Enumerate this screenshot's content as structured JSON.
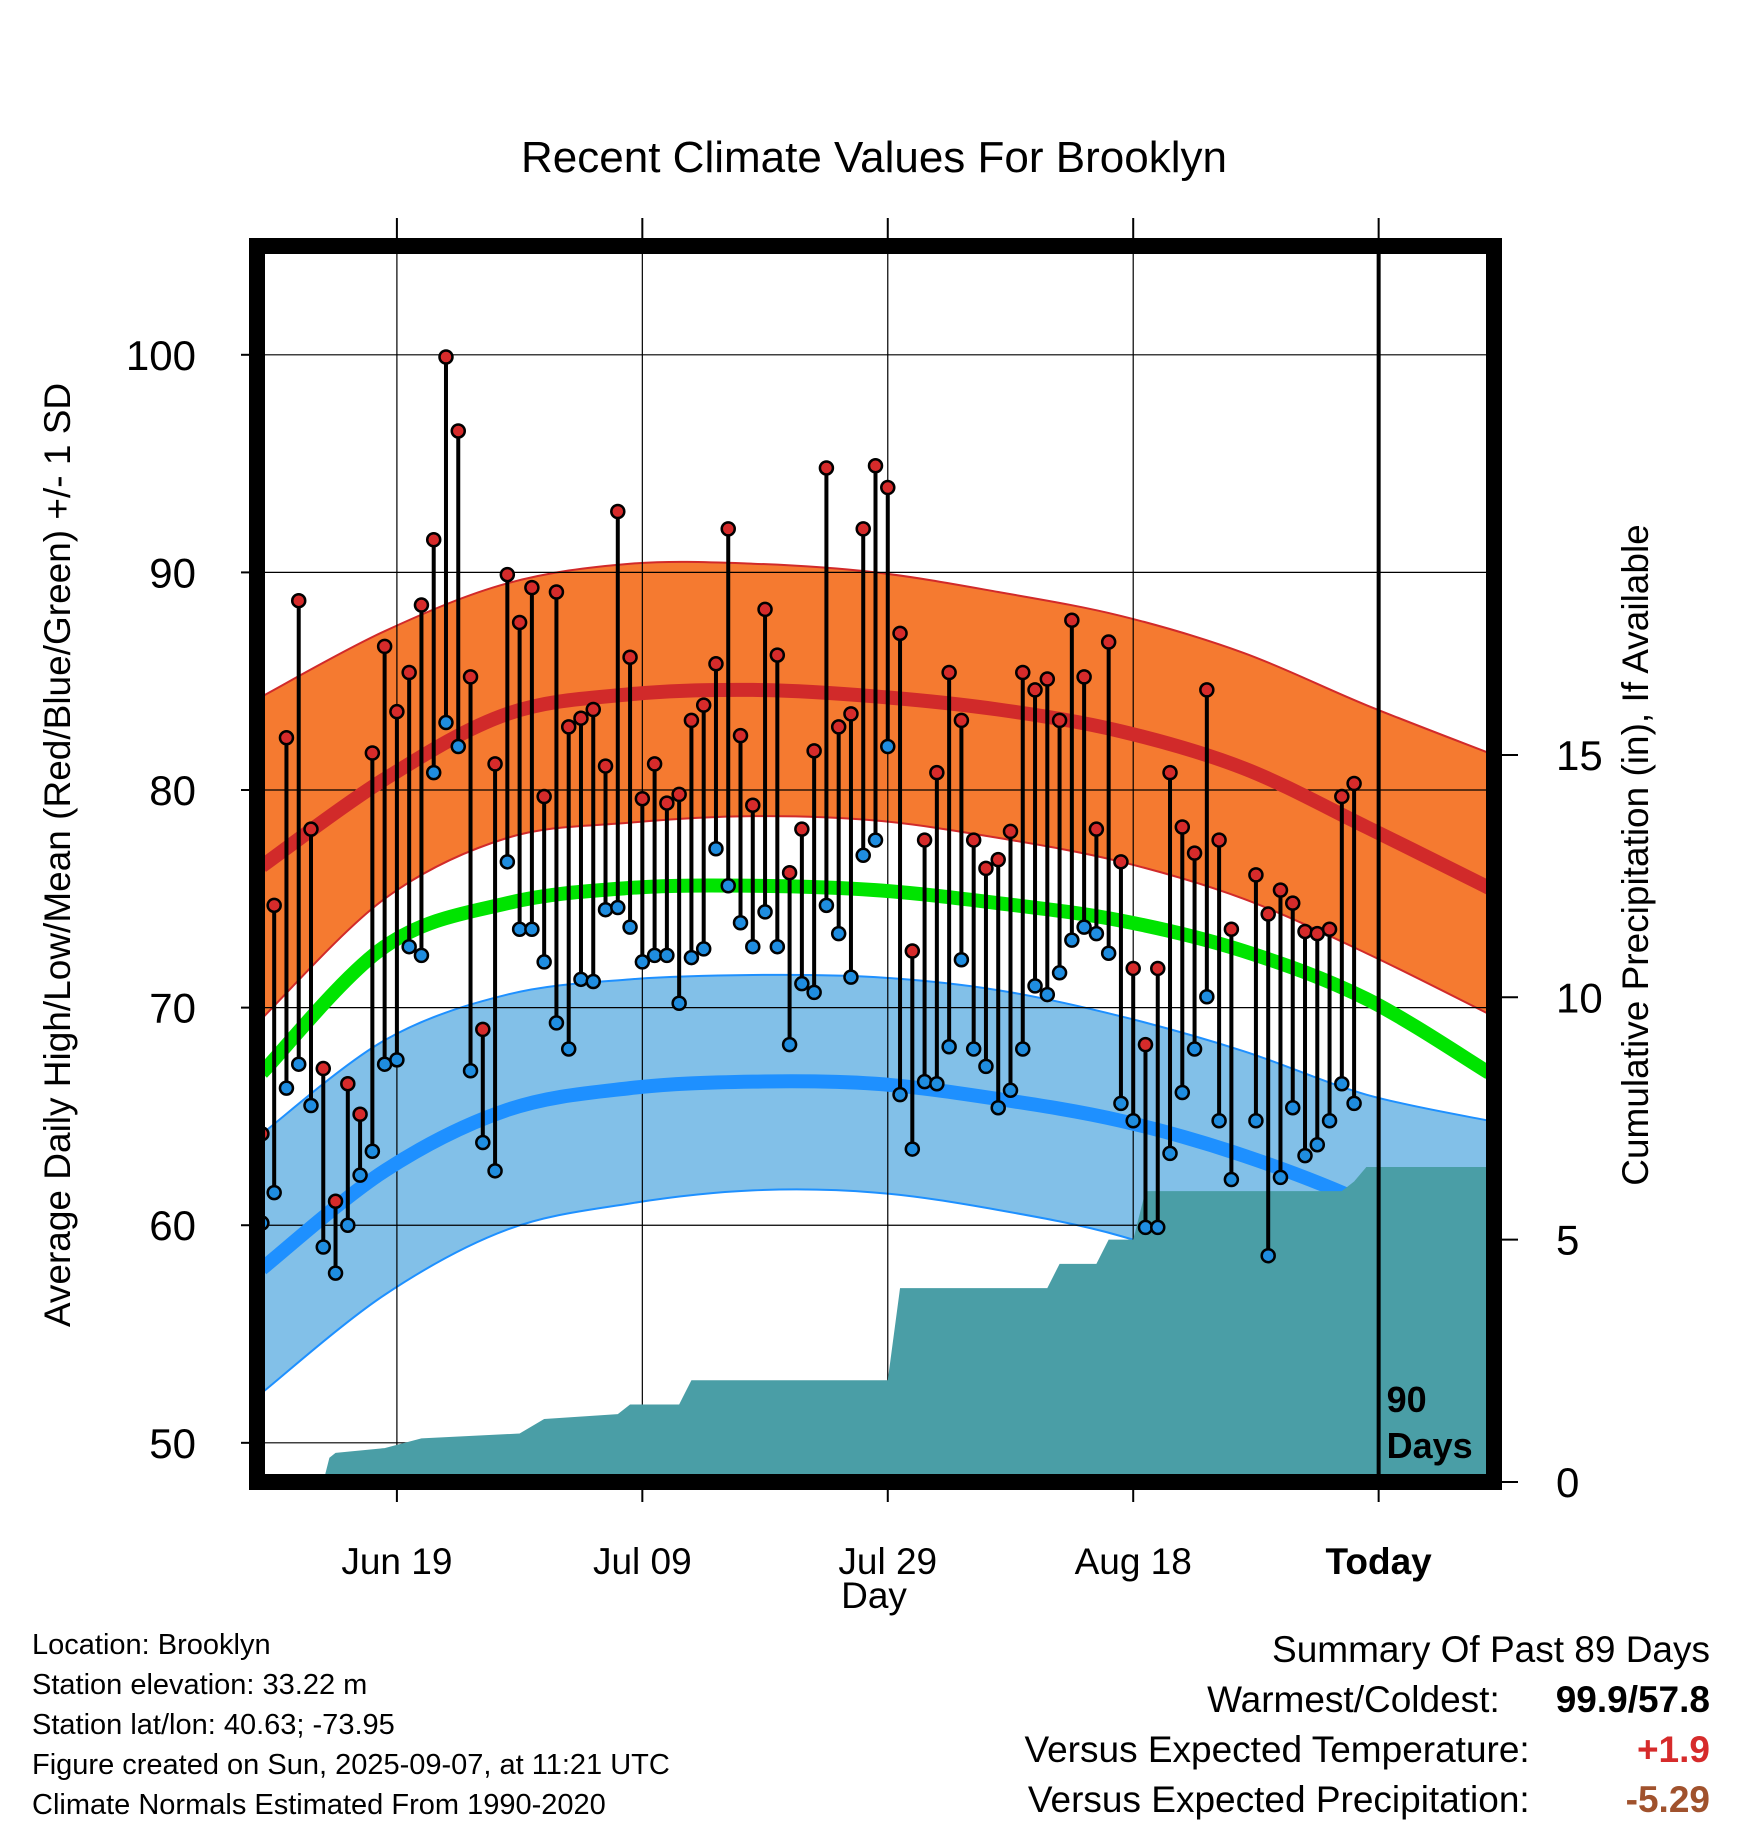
{
  "chart_data": {
    "type": "line",
    "title": "Recent Climate Values For Brooklyn",
    "xlabel": "Day",
    "ylabel": "Average Daily High/Low/Mean (Red/Blue/Green) +/- 1 SD",
    "y2label": "Cumulative Precipitation (in), If Available",
    "ylim": [
      48.2,
      105
    ],
    "y2lim": [
      0,
      25.5
    ],
    "xlim": [
      -0.4,
      100.4
    ],
    "x_tick_labels": [
      {
        "x": 11,
        "label": "Jun 19"
      },
      {
        "x": 31,
        "label": "Jul 09"
      },
      {
        "x": 51,
        "label": "Jul 29"
      },
      {
        "x": 71,
        "label": "Aug 18"
      },
      {
        "x": 91,
        "label": "Today"
      }
    ],
    "y_ticks": [
      50,
      60,
      70,
      80,
      90,
      100
    ],
    "y2_ticks": [
      0,
      5,
      10,
      15
    ],
    "grid": true,
    "today_x": 91,
    "today_label": [
      "90",
      "Days"
    ],
    "normals": {
      "high_mean": [
        [
          0,
          76.5
        ],
        [
          10,
          80.5
        ],
        [
          20,
          83.5
        ],
        [
          30,
          84.4
        ],
        [
          40,
          84.6
        ],
        [
          50,
          84.3
        ],
        [
          60,
          83.7
        ],
        [
          70,
          82.7
        ],
        [
          80,
          81.0
        ],
        [
          90,
          78.3
        ],
        [
          100,
          75.5
        ]
      ],
      "high_upper": [
        [
          0,
          84.3
        ],
        [
          10,
          87.3
        ],
        [
          20,
          89.5
        ],
        [
          30,
          90.4
        ],
        [
          40,
          90.4
        ],
        [
          50,
          90.0
        ],
        [
          60,
          89.1
        ],
        [
          70,
          88.0
        ],
        [
          80,
          86.3
        ],
        [
          90,
          83.9
        ],
        [
          100,
          81.7
        ]
      ],
      "high_lower": [
        [
          0,
          69.5
        ],
        [
          10,
          75.0
        ],
        [
          20,
          77.8
        ],
        [
          30,
          78.5
        ],
        [
          40,
          78.8
        ],
        [
          50,
          78.6
        ],
        [
          60,
          77.8
        ],
        [
          70,
          76.7
        ],
        [
          80,
          75.0
        ],
        [
          90,
          72.5
        ],
        [
          100,
          69.7
        ]
      ],
      "mean": [
        [
          0,
          67.0
        ],
        [
          10,
          72.8
        ],
        [
          20,
          74.8
        ],
        [
          30,
          75.5
        ],
        [
          40,
          75.6
        ],
        [
          50,
          75.4
        ],
        [
          60,
          74.8
        ],
        [
          70,
          74.0
        ],
        [
          80,
          72.6
        ],
        [
          90,
          70.4
        ],
        [
          100,
          67.0
        ]
      ],
      "low_mean": [
        [
          0,
          58.0
        ],
        [
          10,
          62.5
        ],
        [
          20,
          65.3
        ],
        [
          30,
          66.3
        ],
        [
          40,
          66.6
        ],
        [
          50,
          66.5
        ],
        [
          60,
          65.8
        ],
        [
          70,
          64.8
        ],
        [
          80,
          63.2
        ],
        [
          90,
          61.0
        ],
        [
          100,
          58.0
        ]
      ],
      "low_upper": [
        [
          0,
          64.2
        ],
        [
          10,
          68.5
        ],
        [
          20,
          70.6
        ],
        [
          30,
          71.3
        ],
        [
          40,
          71.5
        ],
        [
          50,
          71.4
        ],
        [
          60,
          70.8
        ],
        [
          70,
          69.6
        ],
        [
          80,
          68.0
        ],
        [
          90,
          66.0
        ],
        [
          100,
          64.8
        ]
      ],
      "low_lower": [
        [
          0,
          52.3
        ],
        [
          10,
          56.8
        ],
        [
          20,
          59.8
        ],
        [
          30,
          61.0
        ],
        [
          40,
          61.6
        ],
        [
          50,
          61.5
        ],
        [
          60,
          60.7
        ],
        [
          70,
          59.5
        ],
        [
          80,
          57.5
        ],
        [
          90,
          54.5
        ],
        [
          100,
          50.5
        ]
      ]
    },
    "days": [
      {
        "x": 0,
        "high": 64.2,
        "low": 60.1
      },
      {
        "x": 1,
        "high": 74.7,
        "low": 61.5
      },
      {
        "x": 2,
        "high": 82.4,
        "low": 66.3
      },
      {
        "x": 3,
        "high": 88.7,
        "low": 67.4
      },
      {
        "x": 4,
        "high": 78.2,
        "low": 65.5
      },
      {
        "x": 5,
        "high": 67.2,
        "low": 59.0
      },
      {
        "x": 6,
        "high": 61.1,
        "low": 57.8
      },
      {
        "x": 7,
        "high": 66.5,
        "low": 60.0
      },
      {
        "x": 8,
        "high": 65.1,
        "low": 62.3
      },
      {
        "x": 9,
        "high": 81.7,
        "low": 63.4
      },
      {
        "x": 10,
        "high": 86.6,
        "low": 67.4
      },
      {
        "x": 11,
        "high": 83.6,
        "low": 67.6
      },
      {
        "x": 12,
        "high": 85.4,
        "low": 72.8
      },
      {
        "x": 13,
        "high": 88.5,
        "low": 72.4
      },
      {
        "x": 14,
        "high": 91.5,
        "low": 80.8
      },
      {
        "x": 15,
        "high": 99.9,
        "low": 83.1
      },
      {
        "x": 16,
        "high": 96.5,
        "low": 82.0
      },
      {
        "x": 17,
        "high": 85.2,
        "low": 67.1
      },
      {
        "x": 18,
        "high": 69.0,
        "low": 63.8
      },
      {
        "x": 19,
        "high": 81.2,
        "low": 62.5
      },
      {
        "x": 20,
        "high": 89.9,
        "low": 76.7
      },
      {
        "x": 21,
        "high": 87.7,
        "low": 73.6
      },
      {
        "x": 22,
        "high": 89.3,
        "low": 73.6
      },
      {
        "x": 23,
        "high": 79.7,
        "low": 72.1
      },
      {
        "x": 24,
        "high": 89.1,
        "low": 69.3
      },
      {
        "x": 25,
        "high": 82.9,
        "low": 68.1
      },
      {
        "x": 26,
        "high": 83.3,
        "low": 71.3
      },
      {
        "x": 27,
        "high": 83.7,
        "low": 71.2
      },
      {
        "x": 28,
        "high": 81.1,
        "low": 74.5
      },
      {
        "x": 29,
        "high": 92.8,
        "low": 74.6
      },
      {
        "x": 30,
        "high": 86.1,
        "low": 73.7
      },
      {
        "x": 31,
        "high": 79.6,
        "low": 72.1
      },
      {
        "x": 32,
        "high": 81.2,
        "low": 72.4
      },
      {
        "x": 33,
        "high": 79.4,
        "low": 72.4
      },
      {
        "x": 34,
        "high": 79.8,
        "low": 70.2
      },
      {
        "x": 35,
        "high": 83.2,
        "low": 72.3
      },
      {
        "x": 36,
        "high": 83.9,
        "low": 72.7
      },
      {
        "x": 37,
        "high": 85.8,
        "low": 77.3
      },
      {
        "x": 38,
        "high": 92.0,
        "low": 75.6
      },
      {
        "x": 39,
        "high": 82.5,
        "low": 73.9
      },
      {
        "x": 40,
        "high": 79.3,
        "low": 72.8
      },
      {
        "x": 41,
        "high": 88.3,
        "low": 74.4
      },
      {
        "x": 42,
        "high": 86.2,
        "low": 72.8
      },
      {
        "x": 43,
        "high": 76.2,
        "low": 68.3
      },
      {
        "x": 44,
        "high": 78.2,
        "low": 71.1
      },
      {
        "x": 45,
        "high": 81.8,
        "low": 70.7
      },
      {
        "x": 46,
        "high": 94.8,
        "low": 74.7
      },
      {
        "x": 47,
        "high": 82.9,
        "low": 73.4
      },
      {
        "x": 48,
        "high": 83.5,
        "low": 71.4
      },
      {
        "x": 49,
        "high": 92.0,
        "low": 77.0
      },
      {
        "x": 50,
        "high": 94.9,
        "low": 77.7
      },
      {
        "x": 51,
        "high": 93.9,
        "low": 82.0
      },
      {
        "x": 52,
        "high": 87.2,
        "low": 66.0
      },
      {
        "x": 53,
        "high": 72.6,
        "low": 63.5
      },
      {
        "x": 54,
        "high": 77.7,
        "low": 66.6
      },
      {
        "x": 55,
        "high": 80.8,
        "low": 66.5
      },
      {
        "x": 56,
        "high": 85.4,
        "low": 68.2
      },
      {
        "x": 57,
        "high": 83.2,
        "low": 72.2
      },
      {
        "x": 58,
        "high": 77.7,
        "low": 68.1
      },
      {
        "x": 59,
        "high": 76.4,
        "low": 67.3
      },
      {
        "x": 60,
        "high": 76.8,
        "low": 65.4
      },
      {
        "x": 61,
        "high": 78.1,
        "low": 66.2
      },
      {
        "x": 62,
        "high": 85.4,
        "low": 68.1
      },
      {
        "x": 63,
        "high": 84.6,
        "low": 71.0
      },
      {
        "x": 64,
        "high": 85.1,
        "low": 70.6
      },
      {
        "x": 65,
        "high": 83.2,
        "low": 71.6
      },
      {
        "x": 66,
        "high": 87.8,
        "low": 73.1
      },
      {
        "x": 67,
        "high": 85.2,
        "low": 73.7
      },
      {
        "x": 68,
        "high": 78.2,
        "low": 73.4
      },
      {
        "x": 69,
        "high": 86.8,
        "low": 72.5
      },
      {
        "x": 70,
        "high": 76.7,
        "low": 65.6
      },
      {
        "x": 71,
        "high": 71.8,
        "low": 64.8
      },
      {
        "x": 72,
        "high": 68.3,
        "low": 59.9
      },
      {
        "x": 73,
        "high": 71.8,
        "low": 59.9
      },
      {
        "x": 74,
        "high": 80.8,
        "low": 63.3
      },
      {
        "x": 75,
        "high": 78.3,
        "low": 66.1
      },
      {
        "x": 76,
        "high": 77.1,
        "low": 68.1
      },
      {
        "x": 77,
        "high": 84.6,
        "low": 70.5
      },
      {
        "x": 78,
        "high": 77.7,
        "low": 64.8
      },
      {
        "x": 79,
        "high": 73.6,
        "low": 62.1
      },
      {
        "x": 81,
        "high": 76.1,
        "low": 64.8
      },
      {
        "x": 82,
        "high": 74.3,
        "low": 58.6
      },
      {
        "x": 83,
        "high": 75.4,
        "low": 62.2
      },
      {
        "x": 84,
        "high": 74.8,
        "low": 65.4
      },
      {
        "x": 85,
        "high": 73.5,
        "low": 63.2
      },
      {
        "x": 86,
        "high": 73.4,
        "low": 63.7
      },
      {
        "x": 87,
        "high": 73.6,
        "low": 64.8
      },
      {
        "x": 88,
        "high": 79.7,
        "low": 66.5
      },
      {
        "x": 89,
        "high": 80.3,
        "low": 65.6
      }
    ],
    "precip_cumulative": [
      [
        0,
        0.0
      ],
      [
        5,
        0.0
      ],
      [
        5.5,
        0.5
      ],
      [
        6,
        0.6
      ],
      [
        10,
        0.7
      ],
      [
        13,
        0.9
      ],
      [
        21,
        1.0
      ],
      [
        23,
        1.3
      ],
      [
        29,
        1.4
      ],
      [
        30,
        1.6
      ],
      [
        34,
        1.6
      ],
      [
        35,
        2.1
      ],
      [
        51,
        2.1
      ],
      [
        52,
        4.0
      ],
      [
        64,
        4.0
      ],
      [
        65,
        4.5
      ],
      [
        68,
        4.5
      ],
      [
        69,
        5.0
      ],
      [
        71,
        5.0
      ],
      [
        72,
        6.0
      ],
      [
        88,
        6.0
      ],
      [
        89,
        6.2
      ],
      [
        90,
        6.5
      ],
      [
        100,
        6.5
      ]
    ],
    "colors": {
      "high_band": "#f57a30",
      "high_line": "#d12a2a",
      "low_band": "#82c0e8",
      "low_line": "#1e90ff",
      "mean_line": "#00e400",
      "precip": "#4a9ea6",
      "high_point": "#d62b2b",
      "low_point": "#1f8de0"
    }
  },
  "info": {
    "location": "Location: Brooklyn",
    "elevation": "Station elevation: 33.22 m",
    "latlon": "Station lat/lon: 40.63; -73.95",
    "created": "Figure created on Sun, 2025-09-07, at 11:21 UTC",
    "normals": "Climate Normals Estimated From 1990-2020"
  },
  "summary": {
    "title": "Summary Of Past 89 Days",
    "warm_label": "Warmest/Coldest:",
    "warm_value": "99.9/57.8",
    "temp_label": "Versus Expected Temperature:",
    "temp_value": "+1.9",
    "precip_label": "Versus Expected Precipitation:",
    "precip_value": "-5.29"
  }
}
